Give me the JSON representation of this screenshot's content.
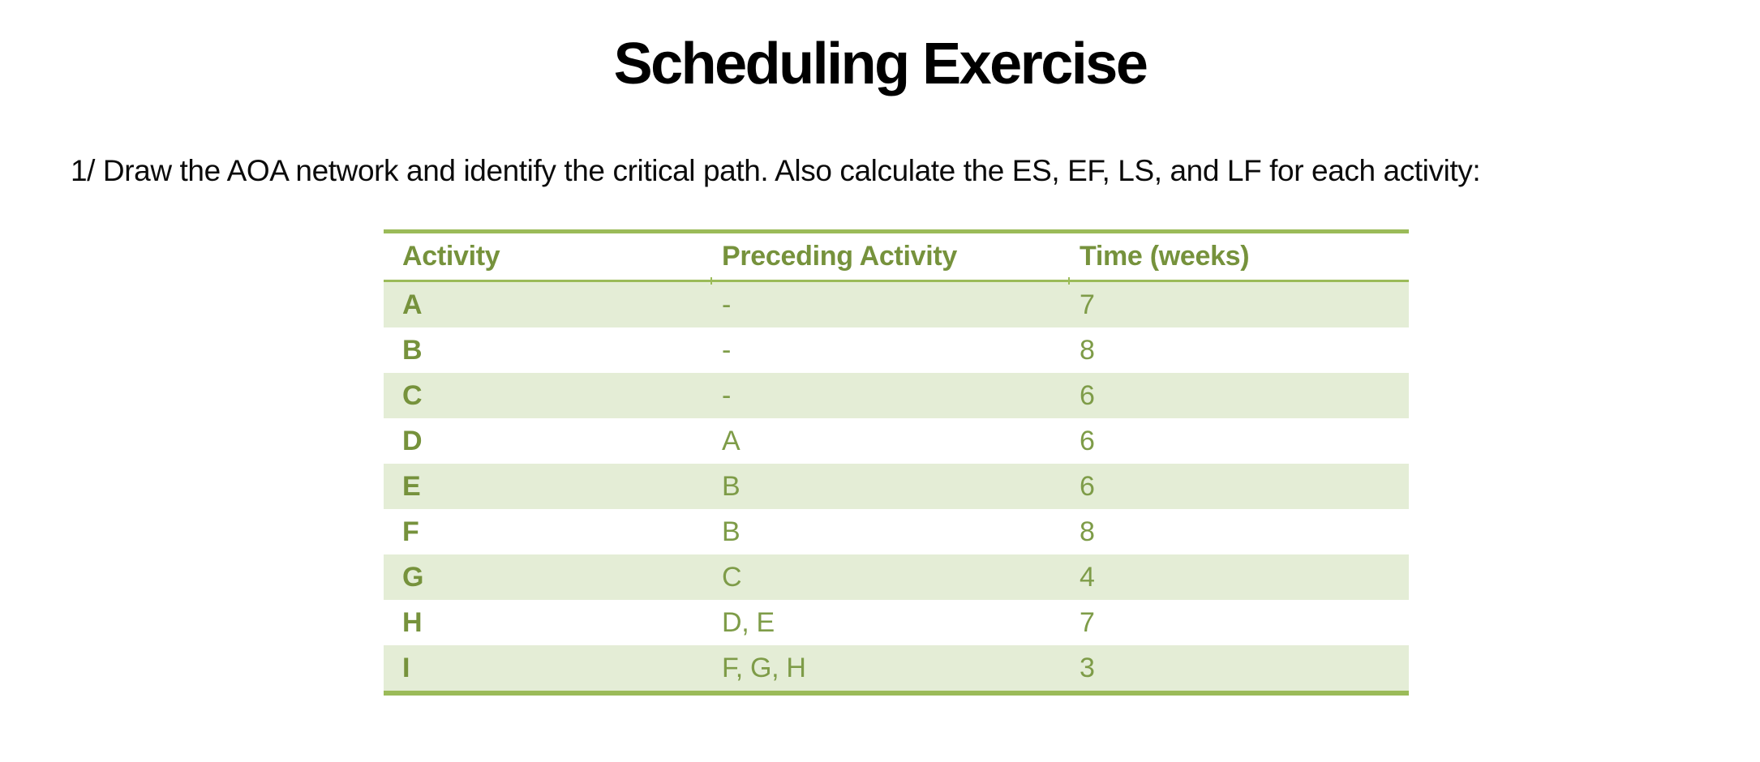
{
  "page": {
    "title": "Scheduling Exercise",
    "instruction": "1/ Draw the AOA network and identify the critical path. Also calculate the ES, EF, LS, and LF for each activity:"
  },
  "table": {
    "columns": [
      "Activity",
      "Preceding Activity",
      "Time (weeks)"
    ],
    "rows": [
      {
        "activity": "A",
        "preceding": "-",
        "time": "7"
      },
      {
        "activity": "B",
        "preceding": "-",
        "time": "8"
      },
      {
        "activity": "C",
        "preceding": "-",
        "time": "6"
      },
      {
        "activity": "D",
        "preceding": "A",
        "time": "6"
      },
      {
        "activity": "E",
        "preceding": "B",
        "time": "6"
      },
      {
        "activity": "F",
        "preceding": "B",
        "time": "8"
      },
      {
        "activity": "G",
        "preceding": "C",
        "time": "4"
      },
      {
        "activity": "H",
        "preceding": "D, E",
        "time": "7"
      },
      {
        "activity": "I",
        "preceding": "F, G, H",
        "time": "3"
      }
    ],
    "colors": {
      "border_green": "#9bbb59",
      "header_text_green": "#76923c",
      "value_text_green": "#7e9c48",
      "banded_row_fill": "#e4edd6",
      "body_text": "#000000"
    }
  }
}
